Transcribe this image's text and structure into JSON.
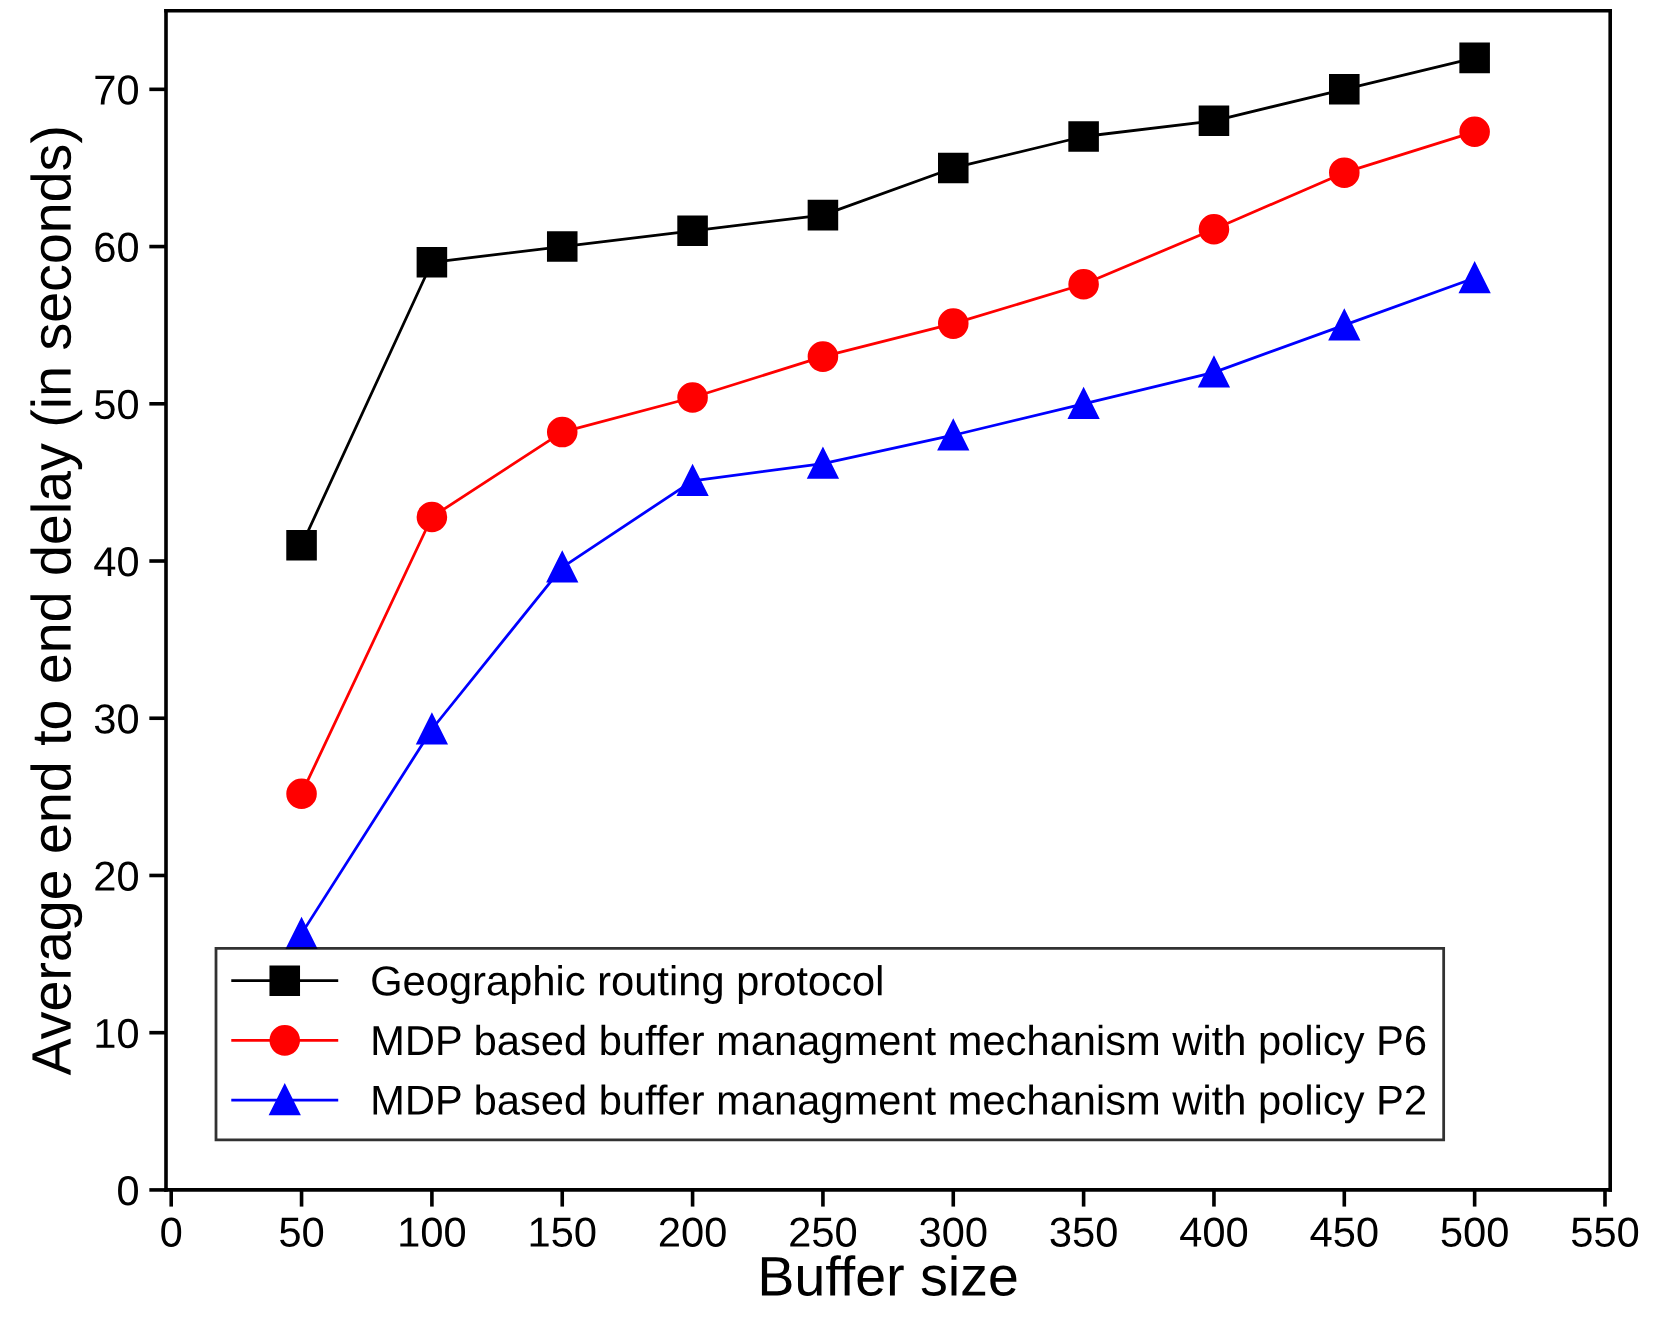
{
  "chart_data": {
    "type": "line",
    "xlabel": "Buffer size",
    "ylabel": "Average end to end delay (in seconds)",
    "x": [
      50,
      100,
      150,
      200,
      250,
      300,
      350,
      400,
      450,
      500
    ],
    "series": [
      {
        "name": "Geographic routing protocol",
        "color": "#000000",
        "marker": "square",
        "values": [
          41,
          59,
          60,
          61,
          62,
          65,
          67,
          68,
          70,
          72
        ]
      },
      {
        "name": "MDP based buffer managment mechanism with policy P6",
        "color": "#ff0000",
        "marker": "circle",
        "values": [
          25.2,
          42.8,
          48.2,
          50.4,
          53,
          55.1,
          57.6,
          61.1,
          64.7,
          67.3
        ]
      },
      {
        "name": "MDP based buffer managment mechanism with policy P2",
        "color": "#0000ff",
        "marker": "triangle",
        "values": [
          16.3,
          29.3,
          39.6,
          45.1,
          46.2,
          48,
          50,
          52,
          55,
          58
        ]
      }
    ],
    "xlim": [
      -2,
      552
    ],
    "xticks": [
      0,
      50,
      100,
      150,
      200,
      250,
      300,
      350,
      400,
      450,
      500,
      550
    ],
    "ylim": [
      0,
      75
    ],
    "yticks": [
      0,
      10,
      20,
      30,
      40,
      50,
      60,
      70
    ],
    "grid": false,
    "legend": "bottom left",
    "line_style": "solid"
  }
}
